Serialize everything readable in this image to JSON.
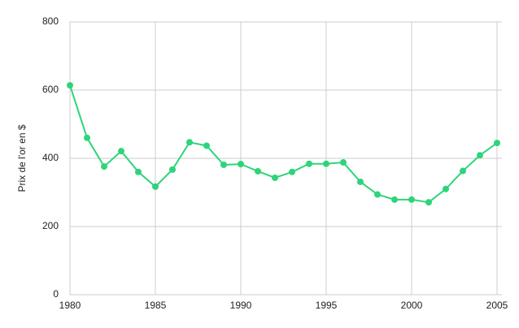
{
  "chart_data": {
    "type": "line",
    "y_label": "Prix de l'or en $",
    "x": [
      1980,
      1981,
      1982,
      1983,
      1984,
      1985,
      1986,
      1987,
      1988,
      1989,
      1990,
      1991,
      1992,
      1993,
      1994,
      1995,
      1996,
      1997,
      1998,
      1999,
      2000,
      2001,
      2002,
      2003,
      2004,
      2005
    ],
    "values": [
      614,
      460,
      376,
      421,
      360,
      317,
      367,
      447,
      437,
      381,
      383,
      362,
      343,
      360,
      384,
      384,
      388,
      331,
      294,
      279,
      279,
      271,
      310,
      363,
      409,
      445
    ],
    "color": "#2ed47a",
    "xlim": [
      1980,
      2005
    ],
    "xticks": [
      1980,
      1985,
      1990,
      1995,
      2000,
      2005
    ],
    "ylim": [
      0,
      800
    ],
    "yticks": [
      0,
      200,
      400,
      600,
      800
    ],
    "grid": true
  }
}
